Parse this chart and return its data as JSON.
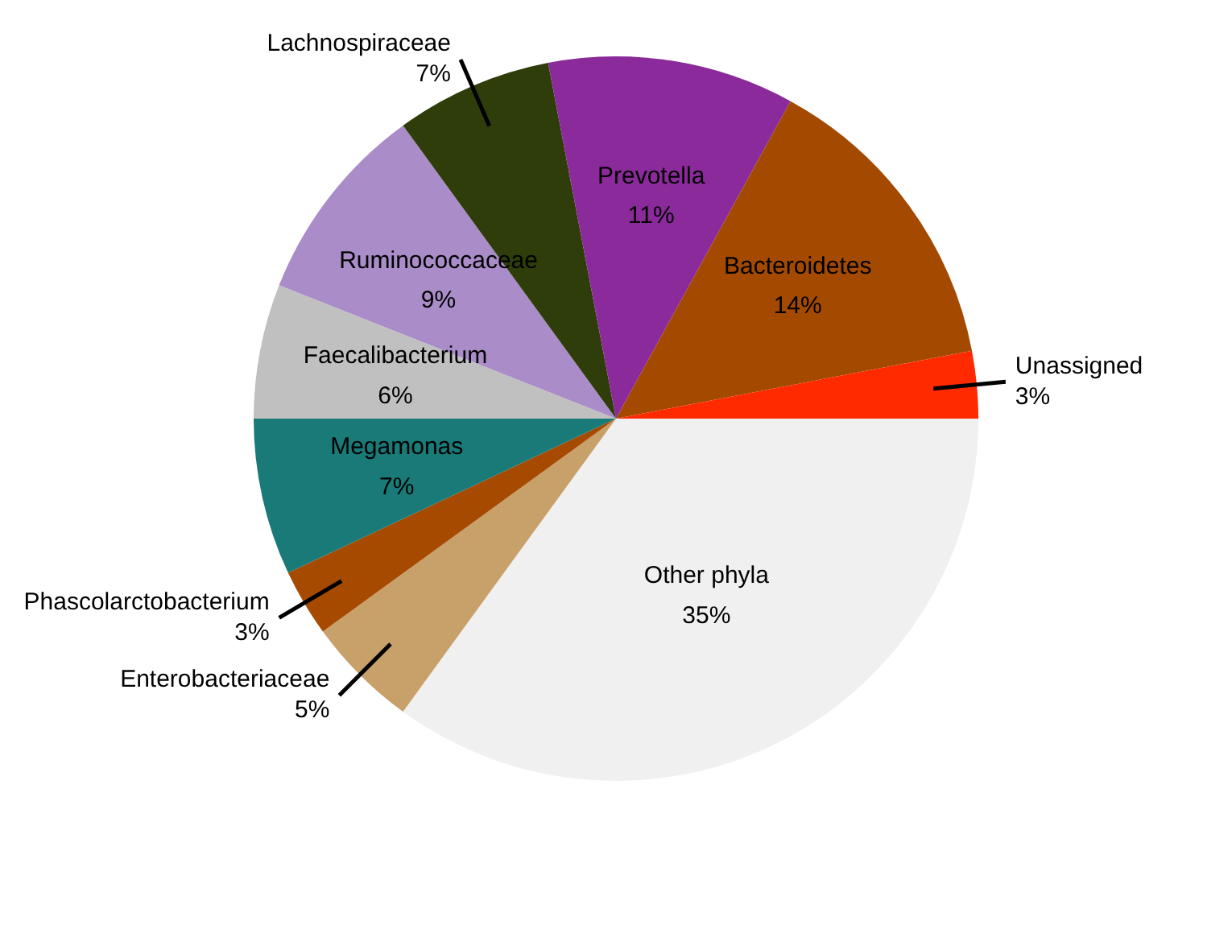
{
  "chart_data": {
    "type": "pie",
    "categories": [
      "Other phyla",
      "Enterobacteriaceae",
      "Phascolarctobacterium",
      "Megamonas",
      "Faecalibacterium",
      "Ruminococcaceae",
      "Lachnospiraceae",
      "Prevotella",
      "Bacteroidetes",
      "Unassigned"
    ],
    "values": [
      35,
      5,
      3,
      7,
      6,
      9,
      7,
      11,
      14,
      3
    ],
    "colors": [
      "#f0f0f0",
      "#c8a06a",
      "#a64a00",
      "#1a7a78",
      "#c0c0c0",
      "#a98cc8",
      "#2e3d0a",
      "#8b2a9a",
      "#a34a00",
      "#ff2a00"
    ],
    "value_labels": [
      "35%",
      "5%",
      "3%",
      "7%",
      "6%",
      "9%",
      "7%",
      "11%",
      "14%",
      "3%"
    ],
    "legend": false
  }
}
